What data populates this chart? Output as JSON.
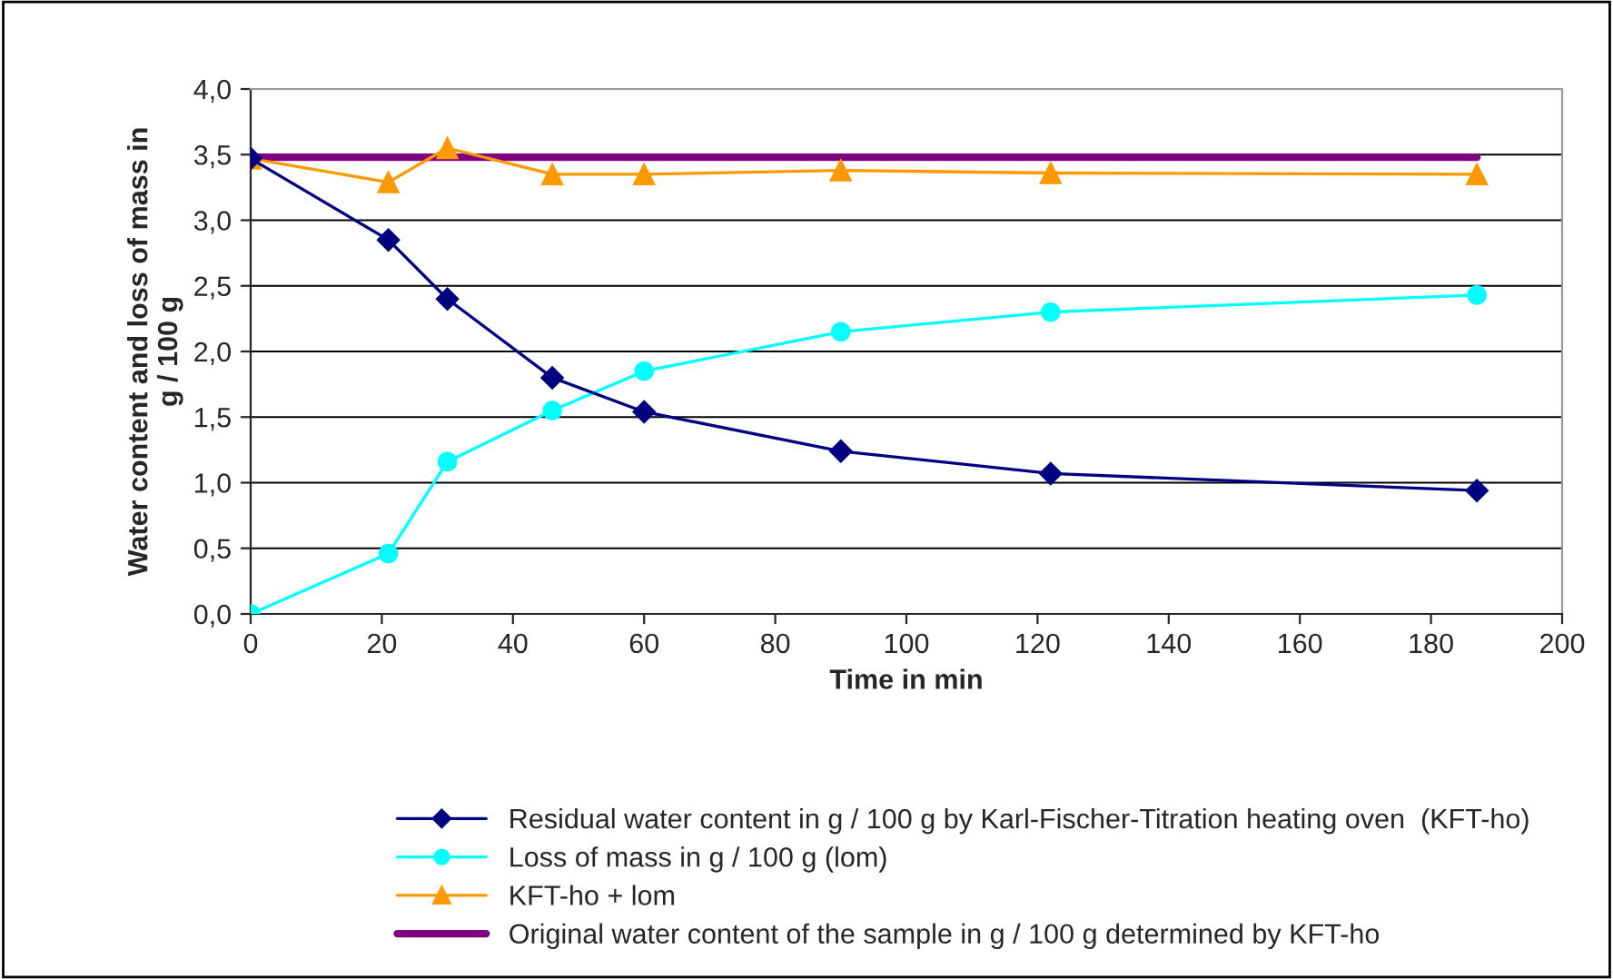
{
  "chart_data": {
    "type": "line",
    "xlabel": "Time in min",
    "ylabel": "Water content and loss of mass in\ng / 100 g",
    "x": [
      0,
      21,
      30,
      46,
      60,
      90,
      122,
      187
    ],
    "series": [
      {
        "name": "Residual water content in g / 100 g by Karl-Fischer-Titration heating oven  (KFT-ho)",
        "color": "#000080",
        "marker": "diamond",
        "values": [
          3.47,
          2.85,
          2.4,
          1.8,
          1.54,
          1.24,
          1.07,
          0.94
        ]
      },
      {
        "name": "Loss of mass in g / 100 g (lom)",
        "color": "#00ffff",
        "marker": "circle",
        "values": [
          0,
          0.46,
          1.16,
          1.55,
          1.85,
          2.15,
          2.3,
          2.43
        ]
      },
      {
        "name": "KFT-ho + lom",
        "color": "#ff9900",
        "marker": "triangle",
        "values": [
          3.47,
          3.29,
          3.55,
          3.35,
          3.35,
          3.38,
          3.36,
          3.35
        ]
      },
      {
        "name": "Original water content of the sample in g / 100 g determined by KFT-ho",
        "color": "#800080",
        "marker": "none",
        "x": [
          0,
          187
        ],
        "values": [
          3.48,
          3.48
        ]
      }
    ],
    "xlim": [
      0,
      200
    ],
    "xticks": [
      0,
      20,
      40,
      60,
      80,
      100,
      120,
      140,
      160,
      180,
      200
    ],
    "ylim": [
      0,
      4
    ],
    "yticks": [
      {
        "value": 0,
        "label": "0,0"
      },
      {
        "value": 0.5,
        "label": "0,5"
      },
      {
        "value": 1,
        "label": "1,0"
      },
      {
        "value": 1.5,
        "label": "1,5"
      },
      {
        "value": 2,
        "label": "2,0"
      },
      {
        "value": 2.5,
        "label": "2,5"
      },
      {
        "value": 3,
        "label": "3,0"
      },
      {
        "value": 3.5,
        "label": "3,5"
      },
      {
        "value": 4,
        "label": "4,0"
      }
    ],
    "grid": "y",
    "legend": "bottom"
  }
}
